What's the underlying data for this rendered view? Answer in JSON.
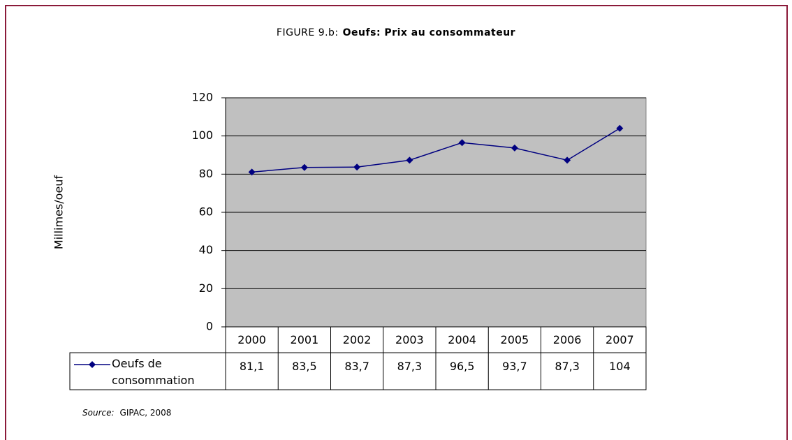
{
  "chart_data": {
    "type": "line",
    "figure_label": "FIGURE 9.b:",
    "title": "Oeufs: Prix au consommateur",
    "y_label": "Millimes/oeuf",
    "categories": [
      "2000",
      "2001",
      "2002",
      "2003",
      "2004",
      "2005",
      "2006",
      "2007"
    ],
    "series": [
      {
        "name": "Oeufs de consommation",
        "color": "#000080",
        "values": [
          81.1,
          83.5,
          83.7,
          87.3,
          96.5,
          93.7,
          87.3,
          104
        ],
        "value_labels": [
          "81,1",
          "83,5",
          "83,7",
          "87,3",
          "96,5",
          "93,7",
          "87,3",
          "104"
        ]
      }
    ],
    "ylim": [
      0,
      120
    ],
    "yticks": [
      0,
      20,
      40,
      60,
      80,
      100,
      120
    ],
    "grid": true,
    "plot_background": "#c0c0c0",
    "source_label": "Source:",
    "source": "GIPAC, 2008"
  }
}
